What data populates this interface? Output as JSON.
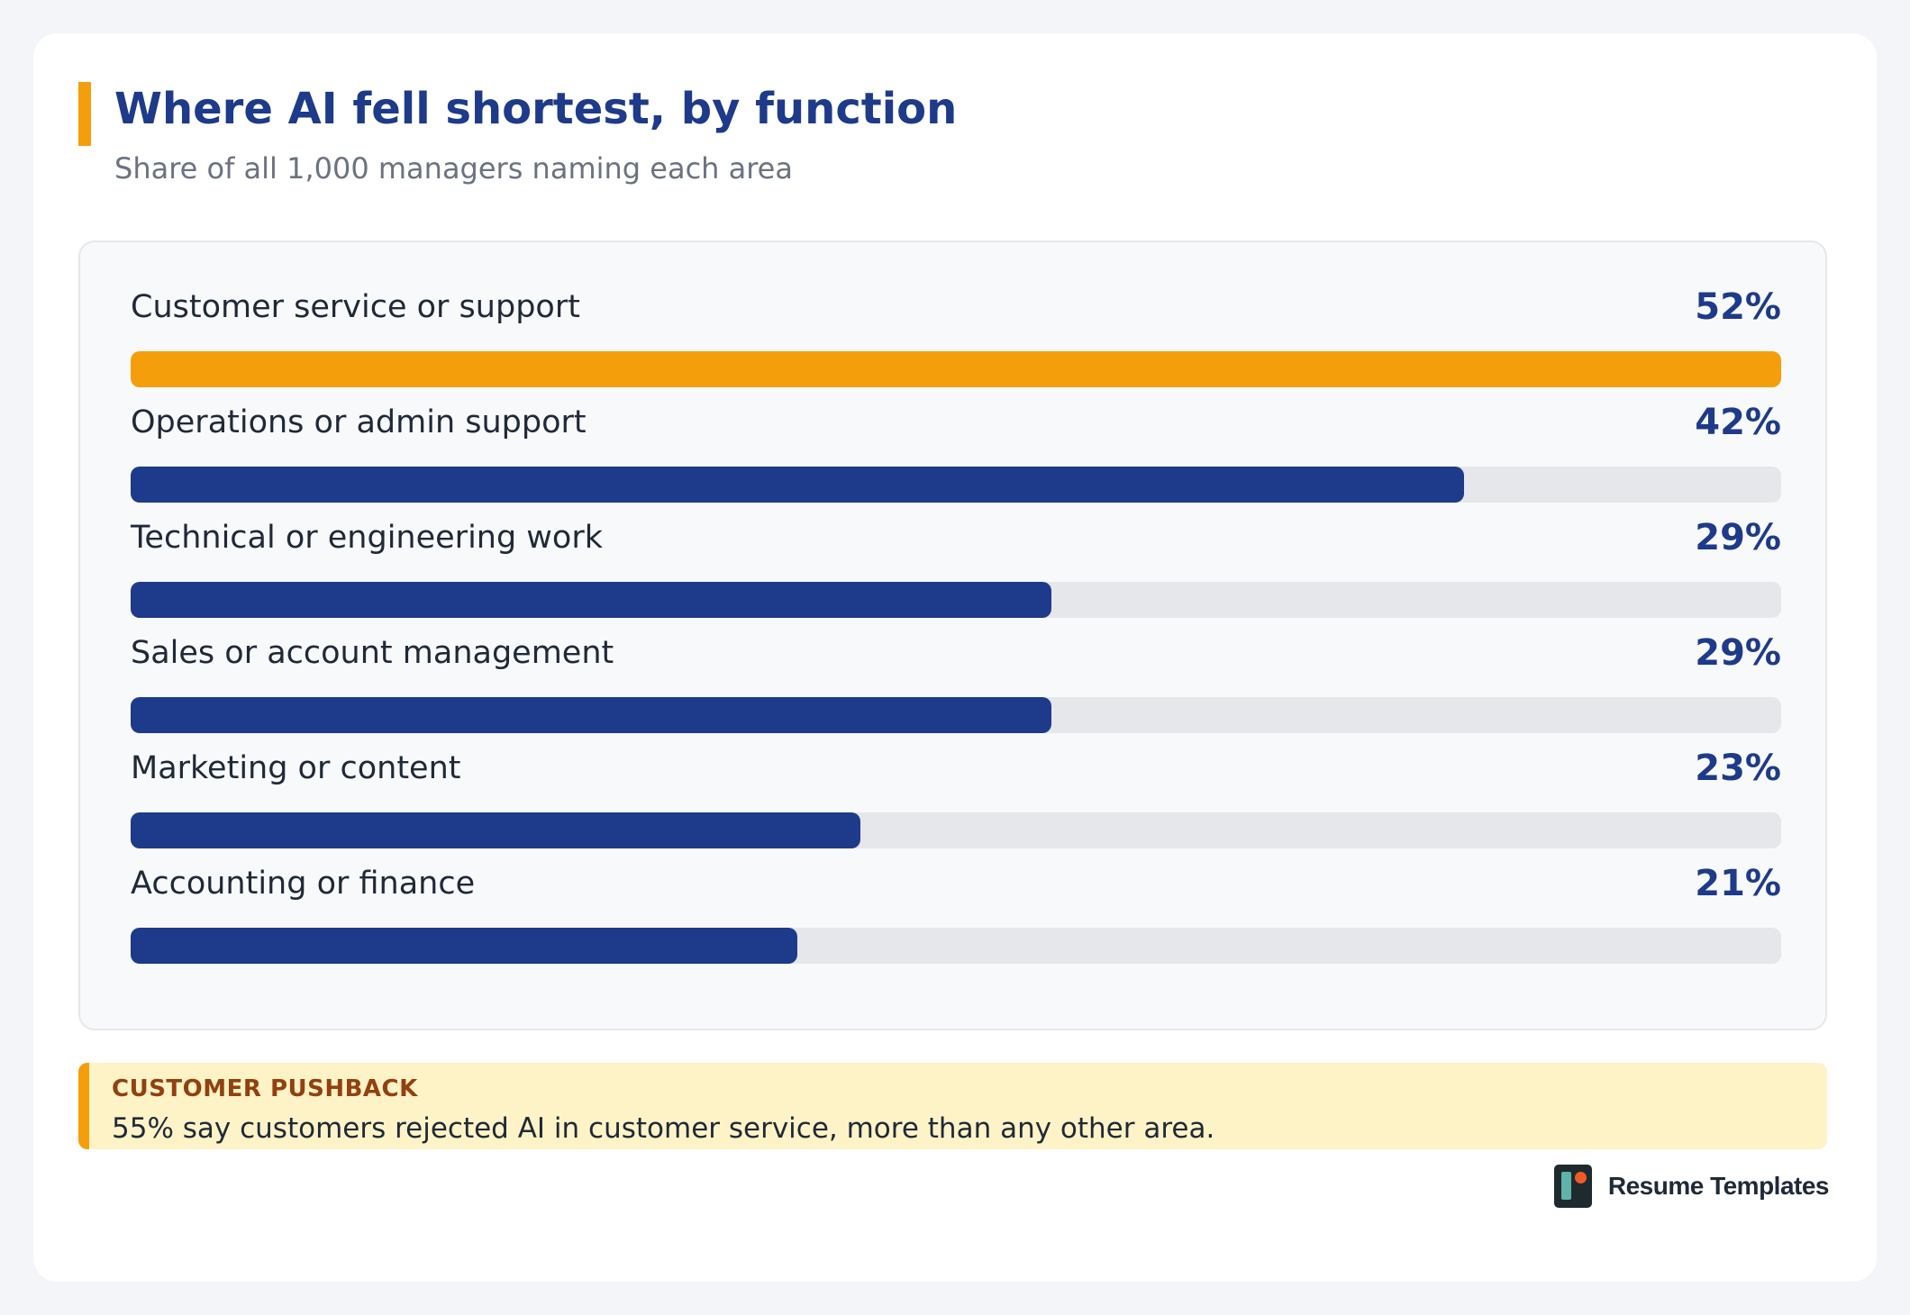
{
  "title": "Where AI fell shortest, by function",
  "subtitle": "Share of all 1,000 managers naming each area",
  "colors": {
    "highlight": "#f59e0b",
    "primary": "#1e3a8a",
    "track": "#e5e7eb"
  },
  "chart_data": {
    "type": "bar",
    "orientation": "horizontal",
    "title": "Where AI fell shortest, by function",
    "subtitle": "Share of all 1,000 managers naming each area",
    "xlim": [
      0,
      52
    ],
    "categories": [
      "Customer service or support",
      "Operations or admin support",
      "Technical or engineering work",
      "Sales or account management",
      "Marketing or content",
      "Accounting or finance"
    ],
    "values": [
      52,
      42,
      29,
      29,
      23,
      21
    ],
    "labels": [
      "52%",
      "42%",
      "29%",
      "29%",
      "23%",
      "21%"
    ],
    "highlighted": [
      true,
      false,
      false,
      false,
      false,
      false
    ]
  },
  "callout": {
    "kicker": "CUSTOMER PUSHBACK",
    "text": "55% say customers rejected AI in customer service, more than any other area."
  },
  "brand": {
    "name": "Resume Templates",
    "icon": "resume-templates-logo-icon"
  }
}
